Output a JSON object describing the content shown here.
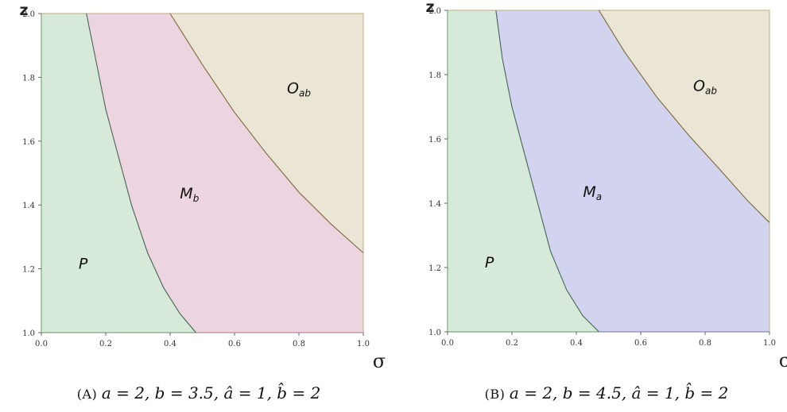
{
  "chart_data": [
    {
      "type": "area",
      "panel_tag": "(A)",
      "caption_math": "a = 2, b = 3.5, â = 1, b̂ = 2",
      "xlabel": "σ",
      "ylabel": "z",
      "xlim": [
        0.0,
        1.0
      ],
      "ylim": [
        1.0,
        2.0
      ],
      "xticks": [
        "0.0",
        "0.2",
        "0.4",
        "0.6",
        "0.8",
        "1.0"
      ],
      "yticks": [
        "1.0",
        "1.2",
        "1.4",
        "1.6",
        "1.8",
        "2.0"
      ],
      "boundaries": [
        {
          "between": [
            "P",
            "M_b"
          ],
          "x": [
            0.14,
            0.17,
            0.2,
            0.24,
            0.28,
            0.33,
            0.38,
            0.43,
            0.48
          ],
          "y": [
            2.0,
            1.85,
            1.7,
            1.55,
            1.4,
            1.25,
            1.14,
            1.06,
            1.0
          ]
        },
        {
          "between": [
            "M_b",
            "O_ab"
          ],
          "x": [
            0.4,
            0.5,
            0.6,
            0.7,
            0.8,
            0.9,
            1.0
          ],
          "y": [
            2.0,
            1.84,
            1.69,
            1.56,
            1.44,
            1.34,
            1.25
          ]
        }
      ],
      "regions": [
        {
          "label": "P",
          "main": "P",
          "sub": "",
          "color": "#d7ead9",
          "at": [
            0.13,
            1.2
          ]
        },
        {
          "label": "M_b",
          "main": "M",
          "sub": "b",
          "color": "#ecd4e0",
          "at": [
            0.46,
            1.42
          ]
        },
        {
          "label": "O_ab",
          "main": "O",
          "sub": "ab",
          "color": "#ebe5d5",
          "at": [
            0.8,
            1.75
          ]
        }
      ],
      "colors": {
        "P_M": "#3f6a4e",
        "M_O": "#7a6a3a",
        "frame": "#c8b890"
      }
    },
    {
      "type": "area",
      "panel_tag": "(B)",
      "caption_math": "a = 2, b = 4.5, â = 1, b̂ = 2",
      "xlabel": "σ",
      "ylabel": "z",
      "xlim": [
        0.0,
        1.0
      ],
      "ylim": [
        1.0,
        2.0
      ],
      "xticks": [
        "0.0",
        "0.2",
        "0.4",
        "0.6",
        "0.8",
        "1.0"
      ],
      "yticks": [
        "1.0",
        "1.2",
        "1.4",
        "1.6",
        "1.8",
        "2.0"
      ],
      "boundaries": [
        {
          "between": [
            "P",
            "M_a"
          ],
          "x": [
            0.15,
            0.17,
            0.2,
            0.24,
            0.28,
            0.32,
            0.37,
            0.42,
            0.47
          ],
          "y": [
            2.0,
            1.85,
            1.7,
            1.55,
            1.4,
            1.25,
            1.13,
            1.05,
            1.0
          ]
        },
        {
          "between": [
            "M_a",
            "O_ab"
          ],
          "x": [
            0.47,
            0.55,
            0.65,
            0.75,
            0.85,
            0.93,
            1.0
          ],
          "y": [
            2.0,
            1.87,
            1.73,
            1.61,
            1.5,
            1.41,
            1.34
          ]
        }
      ],
      "regions": [
        {
          "label": "P",
          "main": "P",
          "sub": "",
          "color": "#d7ead9",
          "at": [
            0.13,
            1.2
          ]
        },
        {
          "label": "M_a",
          "main": "M",
          "sub": "a",
          "color": "#d2d3ee",
          "at": [
            0.45,
            1.42
          ]
        },
        {
          "label": "O_ab",
          "main": "O",
          "sub": "ab",
          "color": "#ebe5d5",
          "at": [
            0.8,
            1.75
          ]
        }
      ],
      "colors": {
        "P_M": "#3f6a4e",
        "M_O": "#7a6a3a",
        "frame": "#c8b890"
      }
    }
  ]
}
